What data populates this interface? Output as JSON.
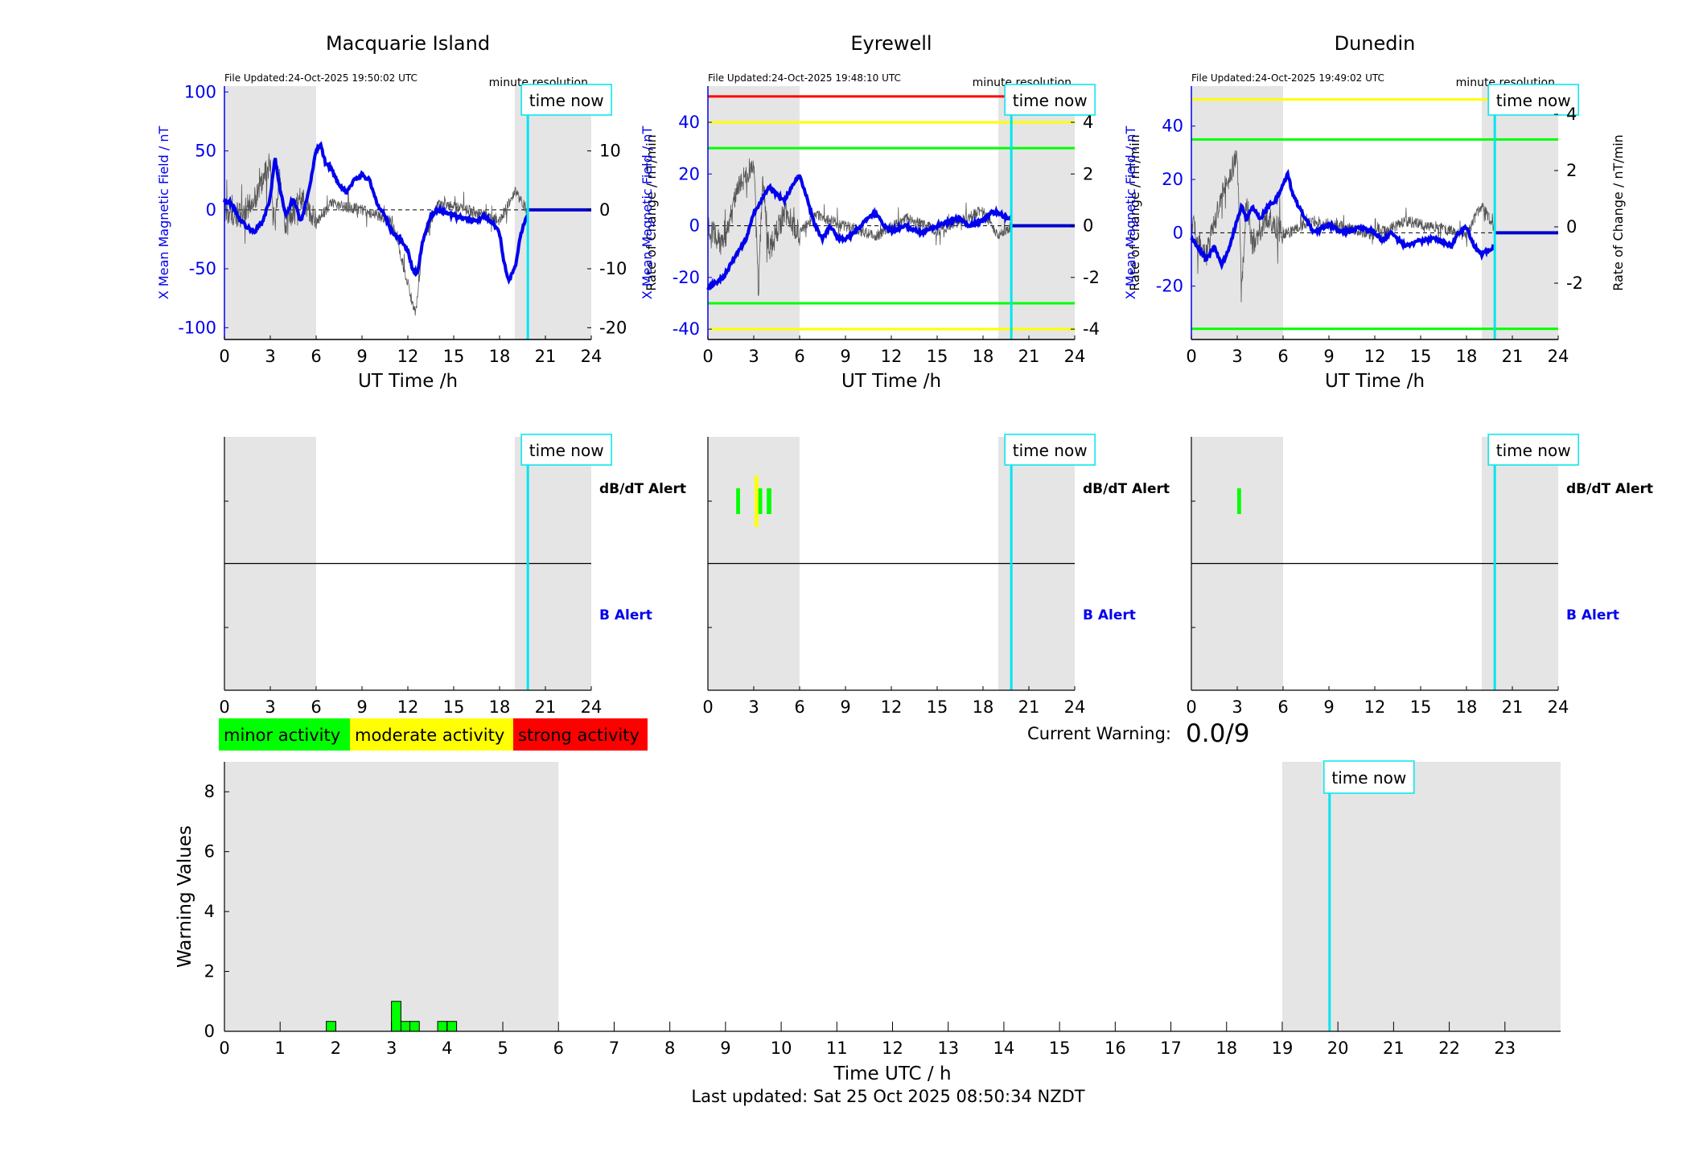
{
  "time_now_h": 19.85,
  "time_now_label": "time now",
  "shade_night": [
    [
      0,
      6
    ],
    [
      19,
      24
    ]
  ],
  "panels": [
    {
      "title": "Macquarie Island",
      "file_updated": "File Updated:24-Oct-2025 19:50:02 UTC",
      "resolution": "minute resolution",
      "xlabel": "UT Time /h",
      "ylabel_left": "X Mean Magnetic Field / nT",
      "ylabel_right": "Rate of Change / nT/min",
      "x_ticks": [
        0,
        3,
        6,
        9,
        12,
        15,
        18,
        21,
        24
      ],
      "left_ylim": [
        -110,
        105
      ],
      "left_ticks": [
        -100,
        -50,
        0,
        50,
        100
      ],
      "right_ylim": [
        -22,
        21
      ],
      "right_ticks": [
        -20,
        -10,
        0,
        10
      ],
      "thresholds": [],
      "b_line": [
        [
          0,
          8
        ],
        [
          0.5,
          5
        ],
        [
          1,
          -8
        ],
        [
          1.5,
          -15
        ],
        [
          2,
          -18
        ],
        [
          2.5,
          -10
        ],
        [
          3,
          10
        ],
        [
          3.3,
          45
        ],
        [
          3.6,
          20
        ],
        [
          4,
          -5
        ],
        [
          4.5,
          10
        ],
        [
          5,
          -10
        ],
        [
          5.5,
          15
        ],
        [
          6,
          50
        ],
        [
          6.3,
          55
        ],
        [
          6.6,
          40
        ],
        [
          7,
          35
        ],
        [
          7.5,
          20
        ],
        [
          8,
          15
        ],
        [
          8.5,
          25
        ],
        [
          9,
          30
        ],
        [
          9.5,
          25
        ],
        [
          10,
          5
        ],
        [
          10.5,
          -5
        ],
        [
          11,
          -20
        ],
        [
          11.5,
          -25
        ],
        [
          12,
          -35
        ],
        [
          12.3,
          -50
        ],
        [
          12.6,
          -55
        ],
        [
          13,
          -25
        ],
        [
          13.5,
          -5
        ],
        [
          14,
          0
        ],
        [
          15,
          -5
        ],
        [
          16,
          -8
        ],
        [
          16.5,
          -10
        ],
        [
          17,
          -5
        ],
        [
          17.5,
          -10
        ],
        [
          18,
          -20
        ],
        [
          18.3,
          -45
        ],
        [
          18.6,
          -60
        ],
        [
          19,
          -50
        ],
        [
          19.4,
          -20
        ],
        [
          19.8,
          -5
        ]
      ],
      "b_flat_after": 0,
      "dbdt_line": [
        [
          0,
          0
        ],
        [
          1,
          -1
        ],
        [
          2,
          2
        ],
        [
          3,
          8
        ],
        [
          3.3,
          -4
        ],
        [
          3.6,
          6
        ],
        [
          4,
          -3
        ],
        [
          5,
          2
        ],
        [
          6,
          -2
        ],
        [
          7,
          1
        ],
        [
          9,
          0
        ],
        [
          11,
          -2
        ],
        [
          12.5,
          -18
        ],
        [
          13,
          -5
        ],
        [
          14,
          1
        ],
        [
          16,
          0
        ],
        [
          18,
          -2
        ],
        [
          19,
          3
        ],
        [
          19.8,
          0
        ]
      ],
      "dbdt_alerts": [],
      "b_alerts": []
    },
    {
      "title": "Eyrewell",
      "file_updated": "File Updated:24-Oct-2025 19:48:10 UTC",
      "resolution": "minute resolution",
      "xlabel": "UT Time /h",
      "ylabel_left": "X Mean Magnetic Field / nT",
      "ylabel_right": "Rate of Change / nT/min",
      "x_ticks": [
        0,
        3,
        6,
        9,
        12,
        15,
        18,
        21,
        24
      ],
      "left_ylim": [
        -44,
        54
      ],
      "left_ticks": [
        -40,
        -20,
        0,
        20,
        40
      ],
      "right_ylim": [
        -4.4,
        5.4
      ],
      "right_ticks": [
        -4,
        -2,
        0,
        2,
        4
      ],
      "thresholds": [
        {
          "value": 50,
          "color": "#ff0000",
          "until": 19.85
        },
        {
          "value": 40,
          "color": "#ffff00"
        },
        {
          "value": 30,
          "color": "#00ff00"
        },
        {
          "value": -30,
          "color": "#00ff00"
        },
        {
          "value": -40,
          "color": "#ffff00"
        }
      ],
      "b_line": [
        [
          0,
          -24
        ],
        [
          0.5,
          -22
        ],
        [
          1,
          -20
        ],
        [
          1.5,
          -15
        ],
        [
          2,
          -10
        ],
        [
          2.5,
          -5
        ],
        [
          3,
          5
        ],
        [
          3.5,
          10
        ],
        [
          4,
          15
        ],
        [
          4.5,
          12
        ],
        [
          5,
          10
        ],
        [
          5.5,
          15
        ],
        [
          6,
          20
        ],
        [
          6.5,
          10
        ],
        [
          7,
          0
        ],
        [
          7.5,
          -5
        ],
        [
          8,
          0
        ],
        [
          8.5,
          -5
        ],
        [
          9,
          -5
        ],
        [
          9.5,
          -3
        ],
        [
          10,
          0
        ],
        [
          10.5,
          3
        ],
        [
          11,
          5
        ],
        [
          11.5,
          0
        ],
        [
          12,
          -2
        ],
        [
          13,
          0
        ],
        [
          14,
          -3
        ],
        [
          15,
          0
        ],
        [
          16,
          2
        ],
        [
          16.5,
          3
        ],
        [
          17,
          0
        ],
        [
          18,
          2
        ],
        [
          18.5,
          5
        ],
        [
          19,
          5
        ],
        [
          19.6,
          3
        ],
        [
          19.85,
          3
        ]
      ],
      "b_flat_after": 0,
      "dbdt_line": [
        [
          0,
          0
        ],
        [
          1,
          -0.8
        ],
        [
          2,
          1.5
        ],
        [
          3,
          2.5
        ],
        [
          3.3,
          -2.5
        ],
        [
          3.6,
          1.8
        ],
        [
          4,
          -1
        ],
        [
          5,
          0.5
        ],
        [
          6,
          -0.3
        ],
        [
          7,
          0.4
        ],
        [
          9,
          0
        ],
        [
          11,
          -0.4
        ],
        [
          13,
          0.3
        ],
        [
          15,
          -0.2
        ],
        [
          17,
          0.3
        ],
        [
          18,
          0.6
        ],
        [
          19,
          -0.4
        ],
        [
          19.8,
          0
        ]
      ],
      "dbdt_alerts": [
        {
          "x0": 1.85,
          "x1": 2.1,
          "level": "minor"
        },
        {
          "x0": 3.05,
          "x1": 3.3,
          "level": "moderate"
        },
        {
          "x0": 3.3,
          "x1": 3.55,
          "level": "minor"
        },
        {
          "x0": 3.85,
          "x1": 4.15,
          "level": "minor"
        }
      ],
      "b_alerts": []
    },
    {
      "title": "Dunedin",
      "file_updated": "File Updated:24-Oct-2025 19:49:02 UTC",
      "resolution": "minute resolution",
      "xlabel": "UT Time /h",
      "ylabel_left": "X Mean Magnetic Field / nT",
      "ylabel_right": "Rate of Change / nT/min",
      "x_ticks": [
        0,
        3,
        6,
        9,
        12,
        15,
        18,
        21,
        24
      ],
      "left_ylim": [
        -40,
        55
      ],
      "left_ticks": [
        -20,
        0,
        20,
        40
      ],
      "right_ylim": [
        -4.0,
        5.0
      ],
      "right_ticks": [
        -2,
        0,
        2,
        4
      ],
      "thresholds": [
        {
          "value": 50,
          "color": "#ffff00"
        },
        {
          "value": 35,
          "color": "#00ff00"
        },
        {
          "value": -36,
          "color": "#00ff00"
        }
      ],
      "b_line": [
        [
          0,
          -2
        ],
        [
          0.5,
          -6
        ],
        [
          1,
          -10
        ],
        [
          1.5,
          -5
        ],
        [
          2,
          -12
        ],
        [
          2.5,
          -5
        ],
        [
          3,
          5
        ],
        [
          3.3,
          10
        ],
        [
          3.6,
          5
        ],
        [
          4,
          10
        ],
        [
          4.5,
          5
        ],
        [
          5,
          10
        ],
        [
          5.5,
          12
        ],
        [
          6,
          18
        ],
        [
          6.3,
          22
        ],
        [
          6.6,
          15
        ],
        [
          7,
          10
        ],
        [
          7.5,
          5
        ],
        [
          8,
          0
        ],
        [
          9,
          3
        ],
        [
          10,
          0
        ],
        [
          11,
          2
        ],
        [
          12,
          0
        ],
        [
          12.5,
          -3
        ],
        [
          13,
          0
        ],
        [
          14,
          -5
        ],
        [
          15,
          -3
        ],
        [
          16,
          -2
        ],
        [
          17,
          -5
        ],
        [
          17.5,
          0
        ],
        [
          18,
          2
        ],
        [
          18.5,
          -5
        ],
        [
          19,
          -8
        ],
        [
          19.8,
          -5
        ]
      ],
      "b_flat_after": 0,
      "dbdt_line": [
        [
          0,
          0
        ],
        [
          1,
          -1
        ],
        [
          2,
          1.2
        ],
        [
          3,
          2.5
        ],
        [
          3.3,
          -2
        ],
        [
          3.6,
          1
        ],
        [
          4,
          -0.6
        ],
        [
          5,
          0.4
        ],
        [
          6,
          -0.3
        ],
        [
          8,
          0.2
        ],
        [
          10,
          0
        ],
        [
          12,
          -0.3
        ],
        [
          14,
          0.2
        ],
        [
          16,
          0
        ],
        [
          18,
          -0.3
        ],
        [
          19,
          0.8
        ],
        [
          19.8,
          0
        ]
      ],
      "dbdt_alerts": [
        {
          "x0": 3.0,
          "x1": 3.25,
          "level": "minor"
        }
      ],
      "b_alerts": []
    }
  ],
  "alert_panel": {
    "dbdt_label": "dB/dT Alert",
    "b_label": "B Alert",
    "x_ticks": [
      0,
      3,
      6,
      9,
      12,
      15,
      18,
      21,
      24
    ]
  },
  "legend": [
    {
      "label": "minor activity",
      "color": "#00ff00"
    },
    {
      "label": "moderate activity",
      "color": "#ffff00"
    },
    {
      "label": "strong activity",
      "color": "#ff0000"
    }
  ],
  "current_warning": {
    "label": "Current Warning:",
    "value": "0.0/9"
  },
  "chart_data": {
    "type": "bar",
    "xlabel": "Time UTC / h",
    "ylabel": "Warning Values",
    "xlim": [
      0,
      24
    ],
    "ylim": [
      0,
      9
    ],
    "x_ticks": [
      0,
      1,
      2,
      3,
      4,
      5,
      6,
      7,
      8,
      9,
      10,
      11,
      12,
      13,
      14,
      15,
      16,
      17,
      18,
      19,
      20,
      21,
      22,
      23
    ],
    "y_ticks": [
      0,
      2,
      4,
      6,
      8
    ],
    "bars": [
      {
        "x0": 1.83,
        "x1": 2.0,
        "value": 0.33
      },
      {
        "x0": 3.0,
        "x1": 3.17,
        "value": 1.0
      },
      {
        "x0": 3.17,
        "x1": 3.33,
        "value": 0.33
      },
      {
        "x0": 3.33,
        "x1": 3.5,
        "value": 0.33
      },
      {
        "x0": 3.83,
        "x1": 4.0,
        "value": 0.33
      },
      {
        "x0": 4.0,
        "x1": 4.17,
        "value": 0.33
      }
    ],
    "bar_color": "#00ff00"
  },
  "last_updated": "Last updated: Sat 25 Oct 2025 08:50:34 NZDT"
}
